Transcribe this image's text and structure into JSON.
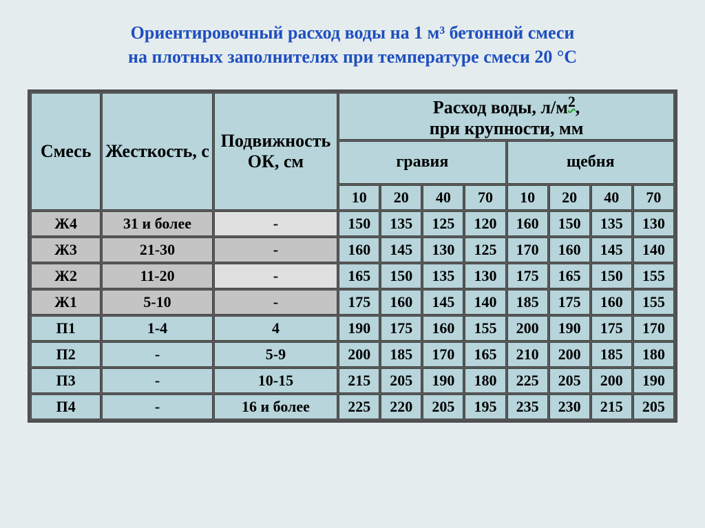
{
  "title_line1": "Ориентировочный расход воды на 1 м³ бетонной смеси",
  "title_line2": "на плотных заполнителях  при температуре смеси 20 °С",
  "headers": {
    "mix": "Смесь",
    "hardness": "Жесткость, с",
    "mobility": "Подвижность ОК, см",
    "consumption_top1": "Расход воды, л/м",
    "consumption_top2": ",",
    "consumption_top3": "при крупности, мм",
    "consumption_sup": "2",
    "gravel": "гравия",
    "crushed": "щебня"
  },
  "sizes": [
    "10",
    "20",
    "40",
    "70",
    "10",
    "20",
    "40",
    "70"
  ],
  "rows": [
    {
      "mix": "Ж4",
      "hard": "31 и более",
      "mob": "-",
      "mob_bg": "graylight",
      "v": [
        "150",
        "135",
        "125",
        "120",
        "160",
        "150",
        "135",
        "130"
      ]
    },
    {
      "mix": "Ж3",
      "hard": "21-30",
      "mob": "-",
      "mob_bg": "gray",
      "v": [
        "160",
        "145",
        "130",
        "125",
        "170",
        "160",
        "145",
        "140"
      ]
    },
    {
      "mix": "Ж2",
      "hard": "11-20",
      "mob": "-",
      "mob_bg": "graylight",
      "v": [
        "165",
        "150",
        "135",
        "130",
        "175",
        "165",
        "150",
        "155"
      ]
    },
    {
      "mix": "Ж1",
      "hard": "5-10",
      "mob": "-",
      "mob_bg": "gray",
      "v": [
        "175",
        "160",
        "145",
        "140",
        "185",
        "175",
        "160",
        "155"
      ]
    },
    {
      "mix": "П1",
      "hard": "1-4",
      "mob": "4",
      "mob_bg": "data",
      "v": [
        "190",
        "175",
        "160",
        "155",
        "200",
        "190",
        "175",
        "170"
      ]
    },
    {
      "mix": "П2",
      "hard": "-",
      "mob": "5-9",
      "mob_bg": "data",
      "v": [
        "200",
        "185",
        "170",
        "165",
        "210",
        "200",
        "185",
        "180"
      ]
    },
    {
      "mix": "П3",
      "hard": "-",
      "mob": "10-15",
      "mob_bg": "data",
      "v": [
        "215",
        "205",
        "190",
        "180",
        "225",
        "205",
        "200",
        "190"
      ]
    },
    {
      "mix": "П4",
      "hard": "-",
      "mob": "16 и более",
      "mob_bg": "data",
      "v": [
        "225",
        "220",
        "205",
        "195",
        "235",
        "230",
        "215",
        "205"
      ]
    }
  ],
  "style": {
    "background": "#e4ecee",
    "title_color": "#1f4fbf",
    "header_bg": "#b7d5db",
    "data_bg": "#b7d5db",
    "gray_bg": "#c4c4c4",
    "graylight_bg": "#e0e0e0",
    "border_color": "#444444",
    "font_family": "Times New Roman",
    "title_fontsize": 26,
    "header_fontsize": 24,
    "cell_fontsize": 22
  }
}
